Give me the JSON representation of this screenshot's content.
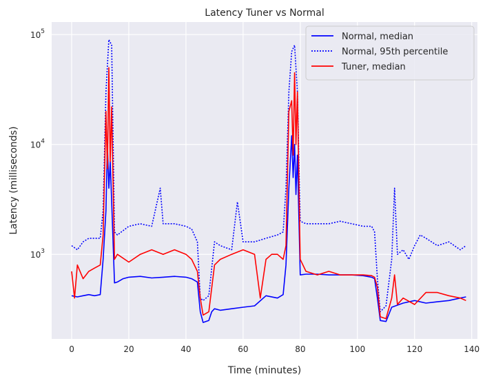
{
  "chart_data": {
    "type": "line",
    "title": "Latency Tuner vs Normal",
    "xlabel": "Time (minutes)",
    "ylabel": "Latency (milliseconds)",
    "xlim": [
      -7,
      142
    ],
    "ylim": [
      170,
      130000
    ],
    "yscale": "log",
    "x_ticks": [
      0,
      20,
      40,
      60,
      80,
      100,
      120,
      140
    ],
    "y_ticks": [
      {
        "value": 1000,
        "base": "10",
        "exp": "3"
      },
      {
        "value": 10000,
        "base": "10",
        "exp": "4"
      },
      {
        "value": 100000,
        "base": "10",
        "exp": "5"
      }
    ],
    "grid": true,
    "legend_position": "top-right",
    "series": [
      {
        "name": "Normal, median",
        "color": "#0000ff",
        "style": "solid",
        "x": [
          0,
          2,
          4,
          6,
          8,
          10,
          11,
          12,
          12.5,
          13,
          13.5,
          14,
          15,
          16,
          18,
          20,
          24,
          28,
          32,
          36,
          40,
          42,
          44,
          45,
          46,
          48,
          49,
          50,
          52,
          56,
          60,
          64,
          68,
          72,
          74,
          75,
          76,
          77,
          77.5,
          78,
          78.5,
          79,
          80,
          82,
          86,
          90,
          94,
          98,
          102,
          105,
          106,
          107,
          108,
          110,
          112,
          116,
          120,
          124,
          128,
          132,
          136,
          138
        ],
        "y": [
          420,
          410,
          420,
          430,
          420,
          430,
          900,
          2500,
          10000,
          4000,
          7000,
          3000,
          550,
          560,
          600,
          620,
          630,
          610,
          620,
          630,
          620,
          600,
          560,
          300,
          240,
          250,
          300,
          320,
          310,
          320,
          330,
          340,
          420,
          400,
          430,
          800,
          4000,
          12000,
          5000,
          10000,
          3500,
          8000,
          650,
          660,
          660,
          650,
          650,
          650,
          640,
          620,
          600,
          400,
          250,
          245,
          330,
          360,
          380,
          360,
          370,
          380,
          400,
          410
        ]
      },
      {
        "name": "Normal, 95th percentile",
        "color": "#0000ff",
        "style": "dotted",
        "x": [
          0,
          2,
          4,
          6,
          8,
          10,
          11,
          12,
          13,
          14,
          15,
          16,
          20,
          24,
          28,
          31,
          32,
          36,
          40,
          42,
          44,
          45,
          46,
          48,
          50,
          52,
          56,
          58,
          60,
          64,
          68,
          72,
          74,
          75,
          76,
          77,
          78,
          79,
          80,
          82,
          86,
          90,
          94,
          98,
          102,
          105,
          106,
          107,
          108,
          110,
          112,
          113,
          114,
          116,
          118,
          120,
          122,
          124,
          128,
          132,
          136,
          138
        ],
        "y": [
          1200,
          1100,
          1300,
          1400,
          1400,
          1400,
          2500,
          30000,
          90000,
          80000,
          1600,
          1500,
          1800,
          1900,
          1800,
          4000,
          1900,
          1900,
          1800,
          1700,
          1300,
          400,
          380,
          420,
          1300,
          1200,
          1100,
          3000,
          1300,
          1300,
          1400,
          1500,
          1600,
          4000,
          30000,
          70000,
          80000,
          30000,
          2000,
          1900,
          1900,
          1900,
          2000,
          1900,
          1800,
          1800,
          1600,
          600,
          300,
          340,
          900,
          4000,
          1000,
          1100,
          900,
          1200,
          1500,
          1400,
          1200,
          1300,
          1100,
          1200
        ]
      },
      {
        "name": "Tuner, median",
        "color": "#ff0000",
        "style": "solid",
        "x": [
          0,
          1,
          2,
          4,
          6,
          8,
          10,
          11,
          12,
          12.5,
          13,
          13.5,
          14,
          15,
          16,
          20,
          24,
          28,
          32,
          36,
          40,
          42,
          44,
          45,
          46,
          48,
          50,
          52,
          56,
          60,
          64,
          66,
          68,
          70,
          72,
          74,
          75,
          76,
          77,
          77.5,
          78,
          78.5,
          79,
          80,
          82,
          86,
          90,
          94,
          98,
          102,
          105,
          106,
          107,
          108,
          110,
          112,
          113,
          114,
          116,
          120,
          124,
          128,
          132,
          136,
          138
        ],
        "y": [
          700,
          400,
          800,
          600,
          700,
          750,
          800,
          1500,
          20000,
          6000,
          50000,
          7000,
          22000,
          900,
          1000,
          850,
          1000,
          1100,
          1000,
          1100,
          1000,
          900,
          700,
          400,
          280,
          300,
          800,
          900,
          1000,
          1100,
          1000,
          400,
          900,
          1000,
          1000,
          900,
          1200,
          20000,
          25000,
          8000,
          45000,
          10000,
          30000,
          900,
          700,
          650,
          700,
          650,
          650,
          650,
          640,
          620,
          500,
          270,
          260,
          400,
          650,
          350,
          400,
          350,
          450,
          450,
          420,
          400,
          380
        ]
      }
    ]
  }
}
